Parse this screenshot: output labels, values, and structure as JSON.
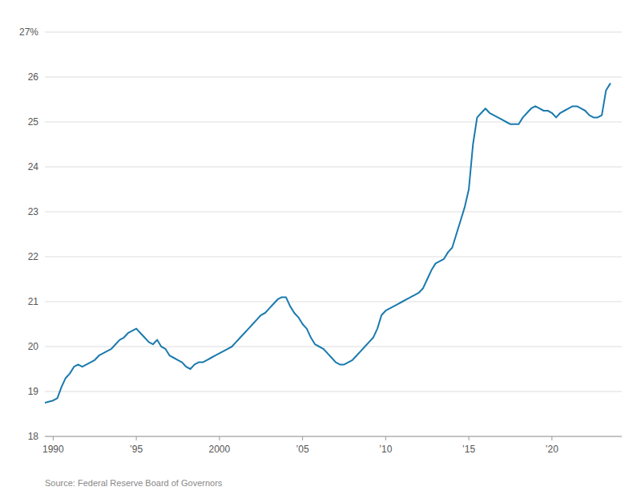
{
  "chart_data": {
    "type": "line",
    "source": "Source: Federal Reserve Board of Governors",
    "color": "#1a7aad",
    "grid": true,
    "xlim": [
      1989.5,
      2024.2
    ],
    "xticks": [
      1990,
      {
        "value": 1995,
        "label": "’95"
      },
      2000,
      {
        "value": 2005,
        "label": "’05"
      },
      {
        "value": 2010,
        "label": "’10"
      },
      {
        "value": 2015,
        "label": "’15"
      },
      {
        "value": 2020,
        "label": "’20"
      }
    ],
    "ylim": [
      18,
      27
    ],
    "yticks": [
      18,
      19,
      20,
      21,
      22,
      23,
      24,
      25,
      26,
      {
        "value": 27,
        "label": "27%"
      }
    ],
    "x": [
      1989.5,
      1990.0,
      1990.25,
      1990.5,
      1990.75,
      1991.0,
      1991.25,
      1991.5,
      1991.75,
      1992.0,
      1992.25,
      1992.5,
      1992.75,
      1993.0,
      1993.25,
      1993.5,
      1993.75,
      1994.0,
      1994.25,
      1994.5,
      1994.75,
      1995.0,
      1995.25,
      1995.5,
      1995.75,
      1996.0,
      1996.25,
      1996.5,
      1996.75,
      1997.0,
      1997.25,
      1997.5,
      1997.75,
      1998.0,
      1998.25,
      1998.5,
      1998.75,
      1999.0,
      1999.25,
      1999.5,
      1999.75,
      2000.0,
      2000.25,
      2000.5,
      2000.75,
      2001.0,
      2001.25,
      2001.5,
      2001.75,
      2002.0,
      2002.25,
      2002.5,
      2002.75,
      2003.0,
      2003.25,
      2003.5,
      2003.75,
      2004.0,
      2004.25,
      2004.5,
      2004.75,
      2005.0,
      2005.25,
      2005.5,
      2005.75,
      2006.0,
      2006.25,
      2006.5,
      2006.75,
      2007.0,
      2007.25,
      2007.5,
      2007.75,
      2008.0,
      2008.25,
      2008.5,
      2008.75,
      2009.0,
      2009.25,
      2009.5,
      2009.75,
      2010.0,
      2010.25,
      2010.5,
      2010.75,
      2011.0,
      2011.25,
      2011.5,
      2011.75,
      2012.0,
      2012.25,
      2012.5,
      2012.75,
      2013.0,
      2013.25,
      2013.5,
      2013.75,
      2014.0,
      2014.25,
      2014.5,
      2014.75,
      2015.0,
      2015.25,
      2015.5,
      2015.75,
      2016.0,
      2016.25,
      2016.5,
      2016.75,
      2017.0,
      2017.25,
      2017.5,
      2017.75,
      2018.0,
      2018.25,
      2018.5,
      2018.75,
      2019.0,
      2019.25,
      2019.5,
      2019.75,
      2020.0,
      2020.25,
      2020.5,
      2020.75,
      2021.0,
      2021.25,
      2021.5,
      2021.75,
      2022.0,
      2022.25,
      2022.5,
      2022.75,
      2023.0,
      2023.25,
      2023.5
    ],
    "values": [
      18.75,
      18.8,
      18.85,
      19.1,
      19.3,
      19.4,
      19.55,
      19.6,
      19.55,
      19.6,
      19.65,
      19.7,
      19.8,
      19.85,
      19.9,
      19.95,
      20.05,
      20.15,
      20.2,
      20.3,
      20.35,
      20.4,
      20.3,
      20.2,
      20.1,
      20.05,
      20.15,
      20.0,
      19.95,
      19.8,
      19.75,
      19.7,
      19.65,
      19.55,
      19.5,
      19.6,
      19.65,
      19.65,
      19.7,
      19.75,
      19.8,
      19.85,
      19.9,
      19.95,
      20.0,
      20.1,
      20.2,
      20.3,
      20.4,
      20.5,
      20.6,
      20.7,
      20.75,
      20.85,
      20.95,
      21.05,
      21.1,
      21.1,
      20.9,
      20.75,
      20.65,
      20.5,
      20.4,
      20.2,
      20.05,
      20.0,
      19.95,
      19.85,
      19.75,
      19.65,
      19.6,
      19.6,
      19.65,
      19.7,
      19.8,
      19.9,
      20.0,
      20.1,
      20.2,
      20.4,
      20.7,
      20.8,
      20.85,
      20.9,
      20.95,
      21.0,
      21.05,
      21.1,
      21.15,
      21.2,
      21.3,
      21.5,
      21.7,
      21.85,
      21.9,
      21.95,
      22.1,
      22.2,
      22.5,
      22.8,
      23.1,
      23.5,
      24.5,
      25.1,
      25.2,
      25.3,
      25.2,
      25.15,
      25.1,
      25.05,
      25.0,
      24.95,
      24.95,
      24.95,
      25.1,
      25.2,
      25.3,
      25.35,
      25.3,
      25.25,
      25.25,
      25.2,
      25.1,
      25.2,
      25.25,
      25.3,
      25.35,
      25.35,
      25.3,
      25.25,
      25.15,
      25.1,
      25.1,
      25.15,
      25.7,
      25.85
    ]
  }
}
